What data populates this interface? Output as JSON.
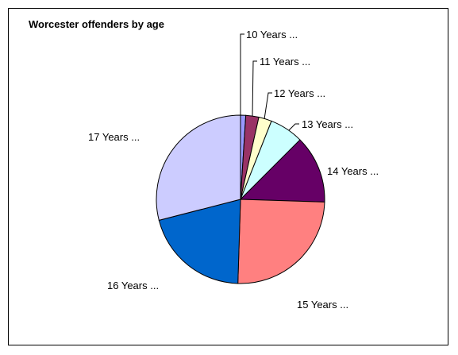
{
  "chart_data": {
    "type": "pie",
    "title": "Worcester offenders by age",
    "legend": "none",
    "slices": [
      {
        "label": "10 Years ...",
        "value": 1.0,
        "color": "#9999FF"
      },
      {
        "label": "11 Years ...",
        "value": 2.5,
        "color": "#993366"
      },
      {
        "label": "12 Years ...",
        "value": 2.5,
        "color": "#FFFFCC"
      },
      {
        "label": "13 Years ...",
        "value": 6.5,
        "color": "#CCFFFF"
      },
      {
        "label": "14 Years ...",
        "value": 13.0,
        "color": "#660066"
      },
      {
        "label": "15 Years ...",
        "value": 25.0,
        "color": "#FF8080"
      },
      {
        "label": "16 Years ...",
        "value": 20.5,
        "color": "#0066CC"
      },
      {
        "label": "17 Years ...",
        "value": 29.0,
        "color": "#CCCCFF"
      }
    ]
  }
}
